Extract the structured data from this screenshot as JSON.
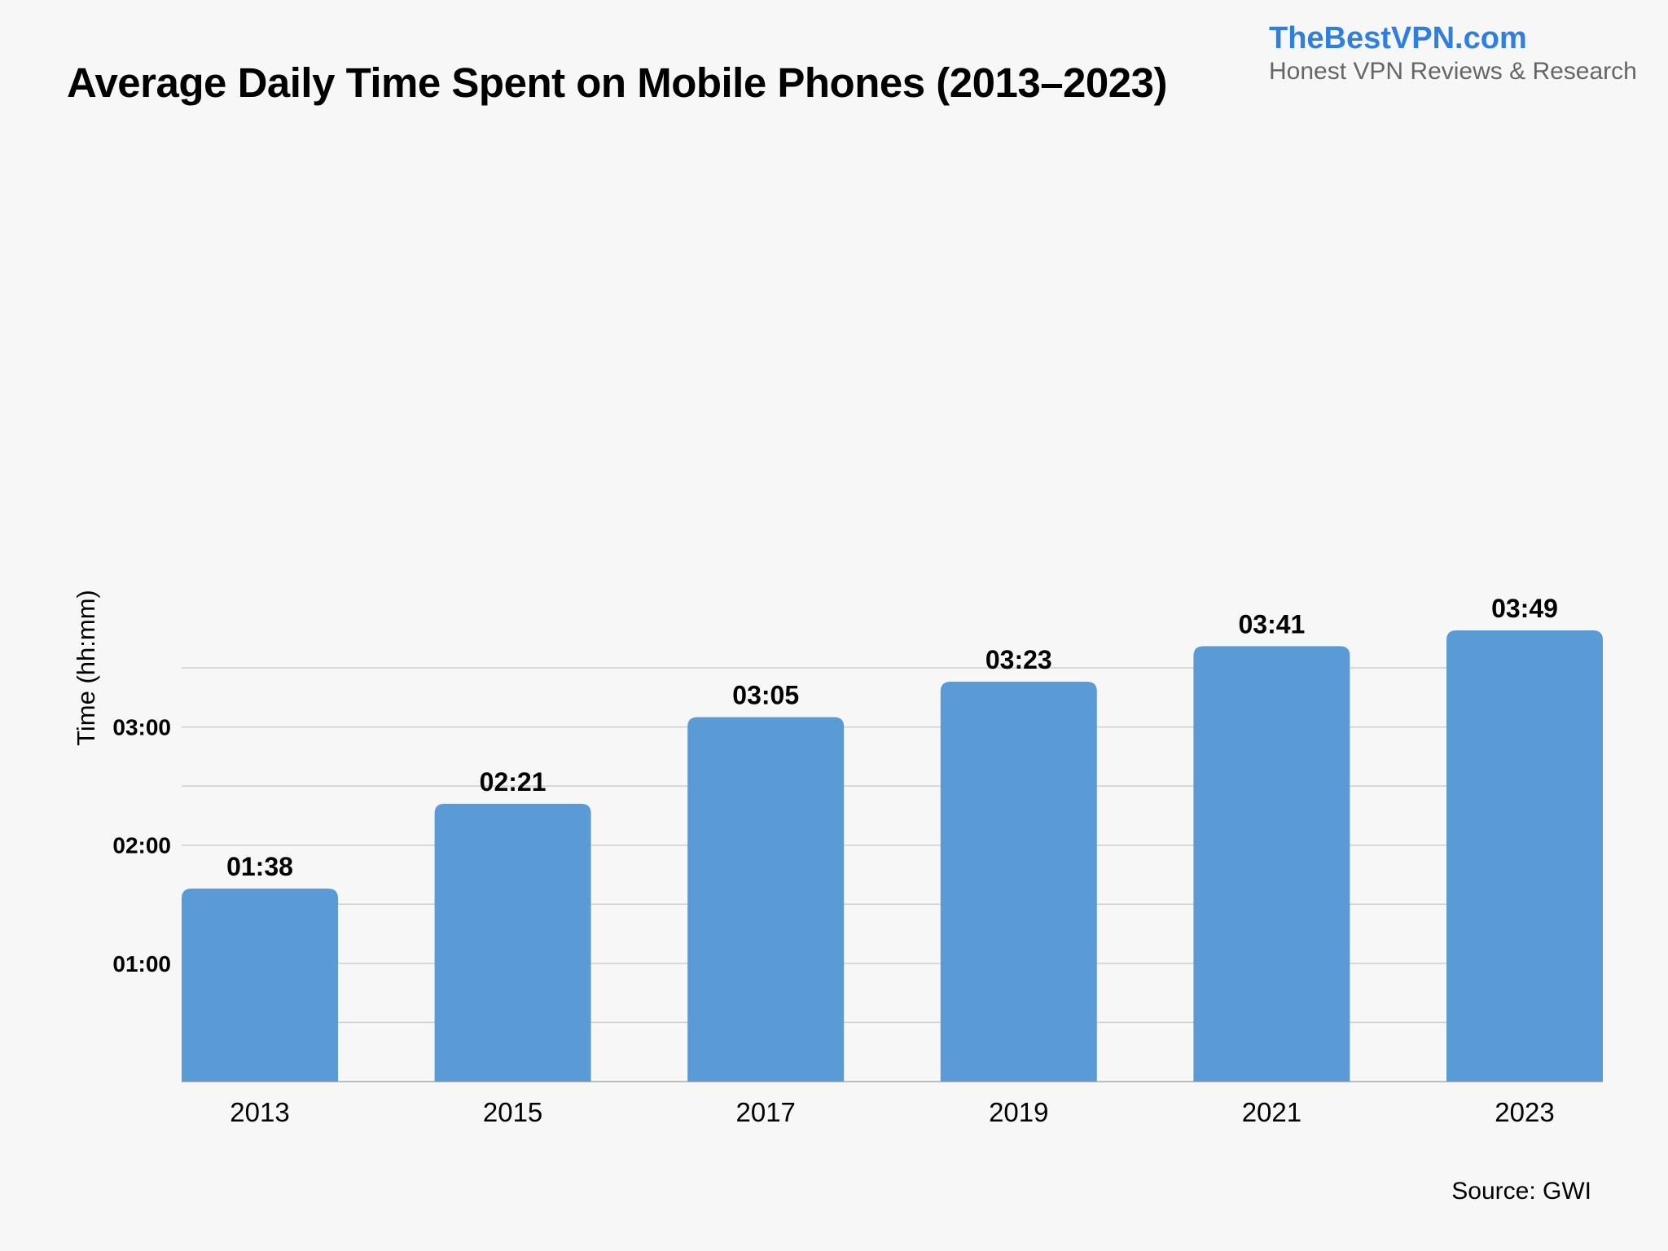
{
  "header": {
    "brand_name": "TheBestVPN.com",
    "brand_tagline": "Honest VPN Reviews & Research"
  },
  "footer": {
    "source": "Source: GWI"
  },
  "colors": {
    "bar": "#5b9bd5",
    "brand": "#2f7fe0",
    "tagline": "#666666",
    "background": "#f8f7f8"
  },
  "chart_data": {
    "type": "bar",
    "title": "Average Daily Time Spent on Mobile Phones (2013–2023)",
    "xlabel": "",
    "ylabel": "Time (hh:mm)",
    "unit": "minutes",
    "categories": [
      "2013",
      "2015",
      "2017",
      "2019",
      "2021",
      "2023"
    ],
    "values": [
      98,
      141,
      185,
      203,
      221,
      229
    ],
    "value_labels": [
      "01:38",
      "02:21",
      "03:05",
      "03:23",
      "03:41",
      "03:49"
    ],
    "ylim": [
      0,
      210
    ],
    "y_ticks": [
      60,
      120,
      180
    ],
    "y_tick_labels": [
      "01:00",
      "02:00",
      "03:00"
    ],
    "grid_lines_every": 30,
    "grid": true,
    "legend": "none"
  }
}
